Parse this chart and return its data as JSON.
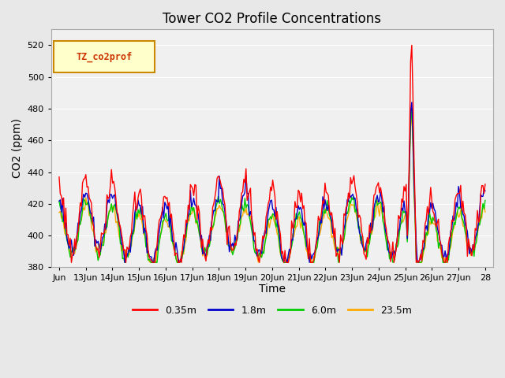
{
  "title": "Tower CO2 Profile Concentrations",
  "ylabel": "CO2 (ppm)",
  "xlabel": "Time",
  "legend_label": "TZ_co2prof",
  "series": [
    "0.35m",
    "1.8m",
    "6.0m",
    "23.5m"
  ],
  "colors": [
    "#ff0000",
    "#0000cc",
    "#00cc00",
    "#ffaa00"
  ],
  "ylim": [
    380,
    530
  ],
  "xtick_labels": [
    "Jun",
    "13Jun",
    "14Jun",
    "15Jun",
    "16Jun",
    "17Jun",
    "18Jun",
    "19Jun",
    "20Jun",
    "21Jun",
    "22Jun",
    "23Jun",
    "24Jun",
    "25Jun",
    "26Jun",
    "27Jun",
    "28"
  ],
  "bg_color": "#e8e8e8",
  "plot_bg": "#f0f0f0",
  "linewidth": 1.0
}
